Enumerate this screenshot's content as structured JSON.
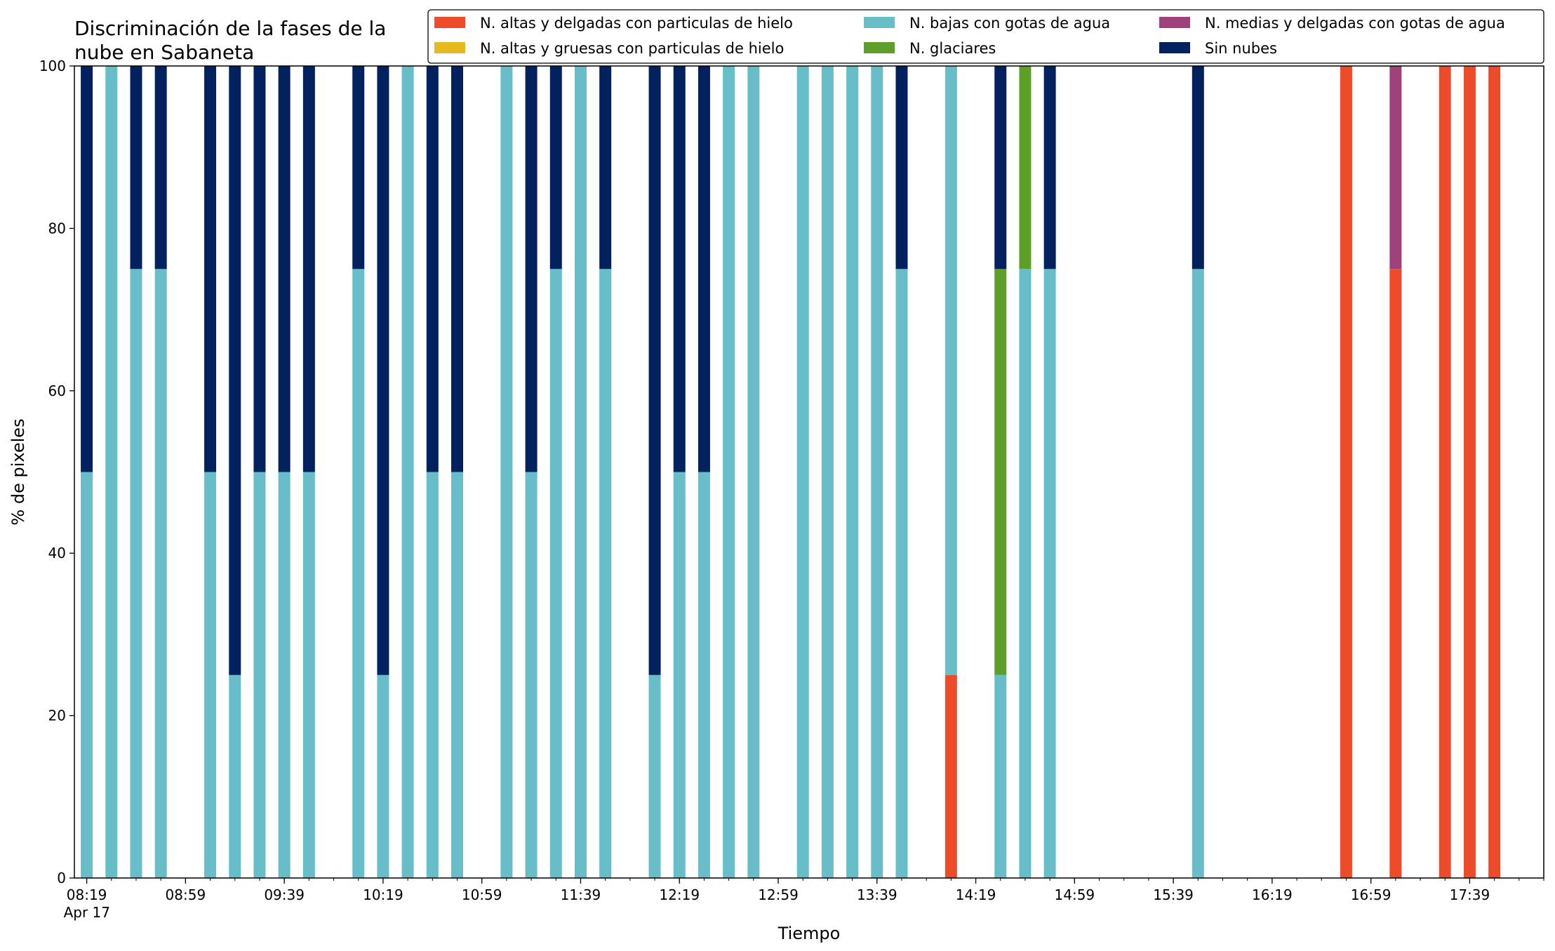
{
  "chart_data": {
    "type": "bar",
    "stacked": true,
    "title_lines": [
      "Discriminación de la fases de la",
      "nube en Sabaneta"
    ],
    "xlabel": "Tiempo",
    "ylabel": "% de pixeles",
    "ylim": [
      0,
      100
    ],
    "yticks": [
      0,
      20,
      40,
      60,
      80,
      100
    ],
    "x_range": [
      "08:14",
      "18:09"
    ],
    "xtick_labels": [
      {
        "time": "08:19",
        "label": "08:19",
        "sublabel": "Apr 17"
      },
      {
        "time": "08:59",
        "label": "08:59"
      },
      {
        "time": "09:39",
        "label": "09:39"
      },
      {
        "time": "10:19",
        "label": "10:19"
      },
      {
        "time": "10:59",
        "label": "10:59"
      },
      {
        "time": "11:39",
        "label": "11:39"
      },
      {
        "time": "12:19",
        "label": "12:19"
      },
      {
        "time": "12:59",
        "label": "12:59"
      },
      {
        "time": "13:39",
        "label": "13:39"
      },
      {
        "time": "14:19",
        "label": "14:19"
      },
      {
        "time": "14:59",
        "label": "14:59"
      },
      {
        "time": "15:39",
        "label": "15:39"
      },
      {
        "time": "16:19",
        "label": "16:19"
      },
      {
        "time": "16:59",
        "label": "16:59"
      },
      {
        "time": "17:39",
        "label": "17:39"
      }
    ],
    "minor_tick_step_minutes": 10,
    "grid": false,
    "legend_position": "top-right",
    "legend_columns": 3,
    "series": [
      {
        "key": "alt_del",
        "name": "N. altas y delgadas con particulas de hielo",
        "color": "#ee4b2b"
      },
      {
        "key": "alt_gru",
        "name": "N. altas y gruesas con particulas de hielo",
        "color": "#e6b91e"
      },
      {
        "key": "baj",
        "name": "N. bajas con gotas de agua",
        "color": "#67bdc8"
      },
      {
        "key": "gla",
        "name": "N. glaciares",
        "color": "#5e9f2a"
      },
      {
        "key": "med",
        "name": "N. medias y delgadas con gotas de agua",
        "color": "#9f417a"
      },
      {
        "key": "sin",
        "name": "Sin nubes",
        "color": "#03215f"
      }
    ],
    "stack_order": [
      "alt_del",
      "alt_gru",
      "baj",
      "gla",
      "med",
      "sin"
    ],
    "bars": [
      {
        "time": "08:19",
        "alt_del": 0,
        "alt_gru": 0,
        "baj": 50,
        "gla": 0,
        "med": 0,
        "sin": 50
      },
      {
        "time": "08:29",
        "alt_del": 0,
        "alt_gru": 0,
        "baj": 100,
        "gla": 0,
        "med": 0,
        "sin": 0
      },
      {
        "time": "08:39",
        "alt_del": 0,
        "alt_gru": 0,
        "baj": 75,
        "gla": 0,
        "med": 0,
        "sin": 25
      },
      {
        "time": "08:49",
        "alt_del": 0,
        "alt_gru": 0,
        "baj": 75,
        "gla": 0,
        "med": 0,
        "sin": 25
      },
      {
        "time": "09:09",
        "alt_del": 0,
        "alt_gru": 0,
        "baj": 50,
        "gla": 0,
        "med": 0,
        "sin": 50
      },
      {
        "time": "09:19",
        "alt_del": 0,
        "alt_gru": 0,
        "baj": 25,
        "gla": 0,
        "med": 0,
        "sin": 75
      },
      {
        "time": "09:29",
        "alt_del": 0,
        "alt_gru": 0,
        "baj": 50,
        "gla": 0,
        "med": 0,
        "sin": 50
      },
      {
        "time": "09:39",
        "alt_del": 0,
        "alt_gru": 0,
        "baj": 50,
        "gla": 0,
        "med": 0,
        "sin": 50
      },
      {
        "time": "09:49",
        "alt_del": 0,
        "alt_gru": 0,
        "baj": 50,
        "gla": 0,
        "med": 0,
        "sin": 50
      },
      {
        "time": "10:09",
        "alt_del": 0,
        "alt_gru": 0,
        "baj": 75,
        "gla": 0,
        "med": 0,
        "sin": 25
      },
      {
        "time": "10:19",
        "alt_del": 0,
        "alt_gru": 0,
        "baj": 25,
        "gla": 0,
        "med": 0,
        "sin": 75
      },
      {
        "time": "10:29",
        "alt_del": 0,
        "alt_gru": 0,
        "baj": 100,
        "gla": 0,
        "med": 0,
        "sin": 0
      },
      {
        "time": "10:39",
        "alt_del": 0,
        "alt_gru": 0,
        "baj": 50,
        "gla": 0,
        "med": 0,
        "sin": 50
      },
      {
        "time": "10:49",
        "alt_del": 0,
        "alt_gru": 0,
        "baj": 50,
        "gla": 0,
        "med": 0,
        "sin": 50
      },
      {
        "time": "11:09",
        "alt_del": 0,
        "alt_gru": 0,
        "baj": 100,
        "gla": 0,
        "med": 0,
        "sin": 0
      },
      {
        "time": "11:19",
        "alt_del": 0,
        "alt_gru": 0,
        "baj": 50,
        "gla": 0,
        "med": 0,
        "sin": 50
      },
      {
        "time": "11:29",
        "alt_del": 0,
        "alt_gru": 0,
        "baj": 75,
        "gla": 0,
        "med": 0,
        "sin": 25
      },
      {
        "time": "11:39",
        "alt_del": 0,
        "alt_gru": 0,
        "baj": 100,
        "gla": 0,
        "med": 0,
        "sin": 0
      },
      {
        "time": "11:49",
        "alt_del": 0,
        "alt_gru": 0,
        "baj": 75,
        "gla": 0,
        "med": 0,
        "sin": 25
      },
      {
        "time": "12:09",
        "alt_del": 0,
        "alt_gru": 0,
        "baj": 25,
        "gla": 0,
        "med": 0,
        "sin": 75
      },
      {
        "time": "12:19",
        "alt_del": 0,
        "alt_gru": 0,
        "baj": 50,
        "gla": 0,
        "med": 0,
        "sin": 50
      },
      {
        "time": "12:29",
        "alt_del": 0,
        "alt_gru": 0,
        "baj": 50,
        "gla": 0,
        "med": 0,
        "sin": 50
      },
      {
        "time": "12:39",
        "alt_del": 0,
        "alt_gru": 0,
        "baj": 100,
        "gla": 0,
        "med": 0,
        "sin": 0
      },
      {
        "time": "12:49",
        "alt_del": 0,
        "alt_gru": 0,
        "baj": 100,
        "gla": 0,
        "med": 0,
        "sin": 0
      },
      {
        "time": "13:09",
        "alt_del": 0,
        "alt_gru": 0,
        "baj": 100,
        "gla": 0,
        "med": 0,
        "sin": 0
      },
      {
        "time": "13:19",
        "alt_del": 0,
        "alt_gru": 0,
        "baj": 100,
        "gla": 0,
        "med": 0,
        "sin": 0
      },
      {
        "time": "13:29",
        "alt_del": 0,
        "alt_gru": 0,
        "baj": 100,
        "gla": 0,
        "med": 0,
        "sin": 0
      },
      {
        "time": "13:39",
        "alt_del": 0,
        "alt_gru": 0,
        "baj": 100,
        "gla": 0,
        "med": 0,
        "sin": 0
      },
      {
        "time": "13:49",
        "alt_del": 0,
        "alt_gru": 0,
        "baj": 75,
        "gla": 0,
        "med": 0,
        "sin": 25
      },
      {
        "time": "14:09",
        "alt_del": 25,
        "alt_gru": 0,
        "baj": 75,
        "gla": 0,
        "med": 0,
        "sin": 0
      },
      {
        "time": "14:29",
        "alt_del": 0,
        "alt_gru": 0,
        "baj": 25,
        "gla": 50,
        "med": 0,
        "sin": 25
      },
      {
        "time": "14:39",
        "alt_del": 0,
        "alt_gru": 0,
        "baj": 75,
        "gla": 25,
        "med": 0,
        "sin": 0
      },
      {
        "time": "14:49",
        "alt_del": 0,
        "alt_gru": 0,
        "baj": 75,
        "gla": 0,
        "med": 0,
        "sin": 25
      },
      {
        "time": "15:49",
        "alt_del": 0,
        "alt_gru": 0,
        "baj": 75,
        "gla": 0,
        "med": 0,
        "sin": 25
      },
      {
        "time": "16:49",
        "alt_del": 100,
        "alt_gru": 0,
        "baj": 0,
        "gla": 0,
        "med": 0,
        "sin": 0
      },
      {
        "time": "17:09",
        "alt_del": 75,
        "alt_gru": 0,
        "baj": 0,
        "gla": 0,
        "med": 25,
        "sin": 0
      },
      {
        "time": "17:29",
        "alt_del": 100,
        "alt_gru": 0,
        "baj": 0,
        "gla": 0,
        "med": 0,
        "sin": 0
      },
      {
        "time": "17:39",
        "alt_del": 100,
        "alt_gru": 0,
        "baj": 0,
        "gla": 0,
        "med": 0,
        "sin": 0
      },
      {
        "time": "17:49",
        "alt_del": 100,
        "alt_gru": 0,
        "baj": 0,
        "gla": 0,
        "med": 0,
        "sin": 0
      }
    ]
  }
}
